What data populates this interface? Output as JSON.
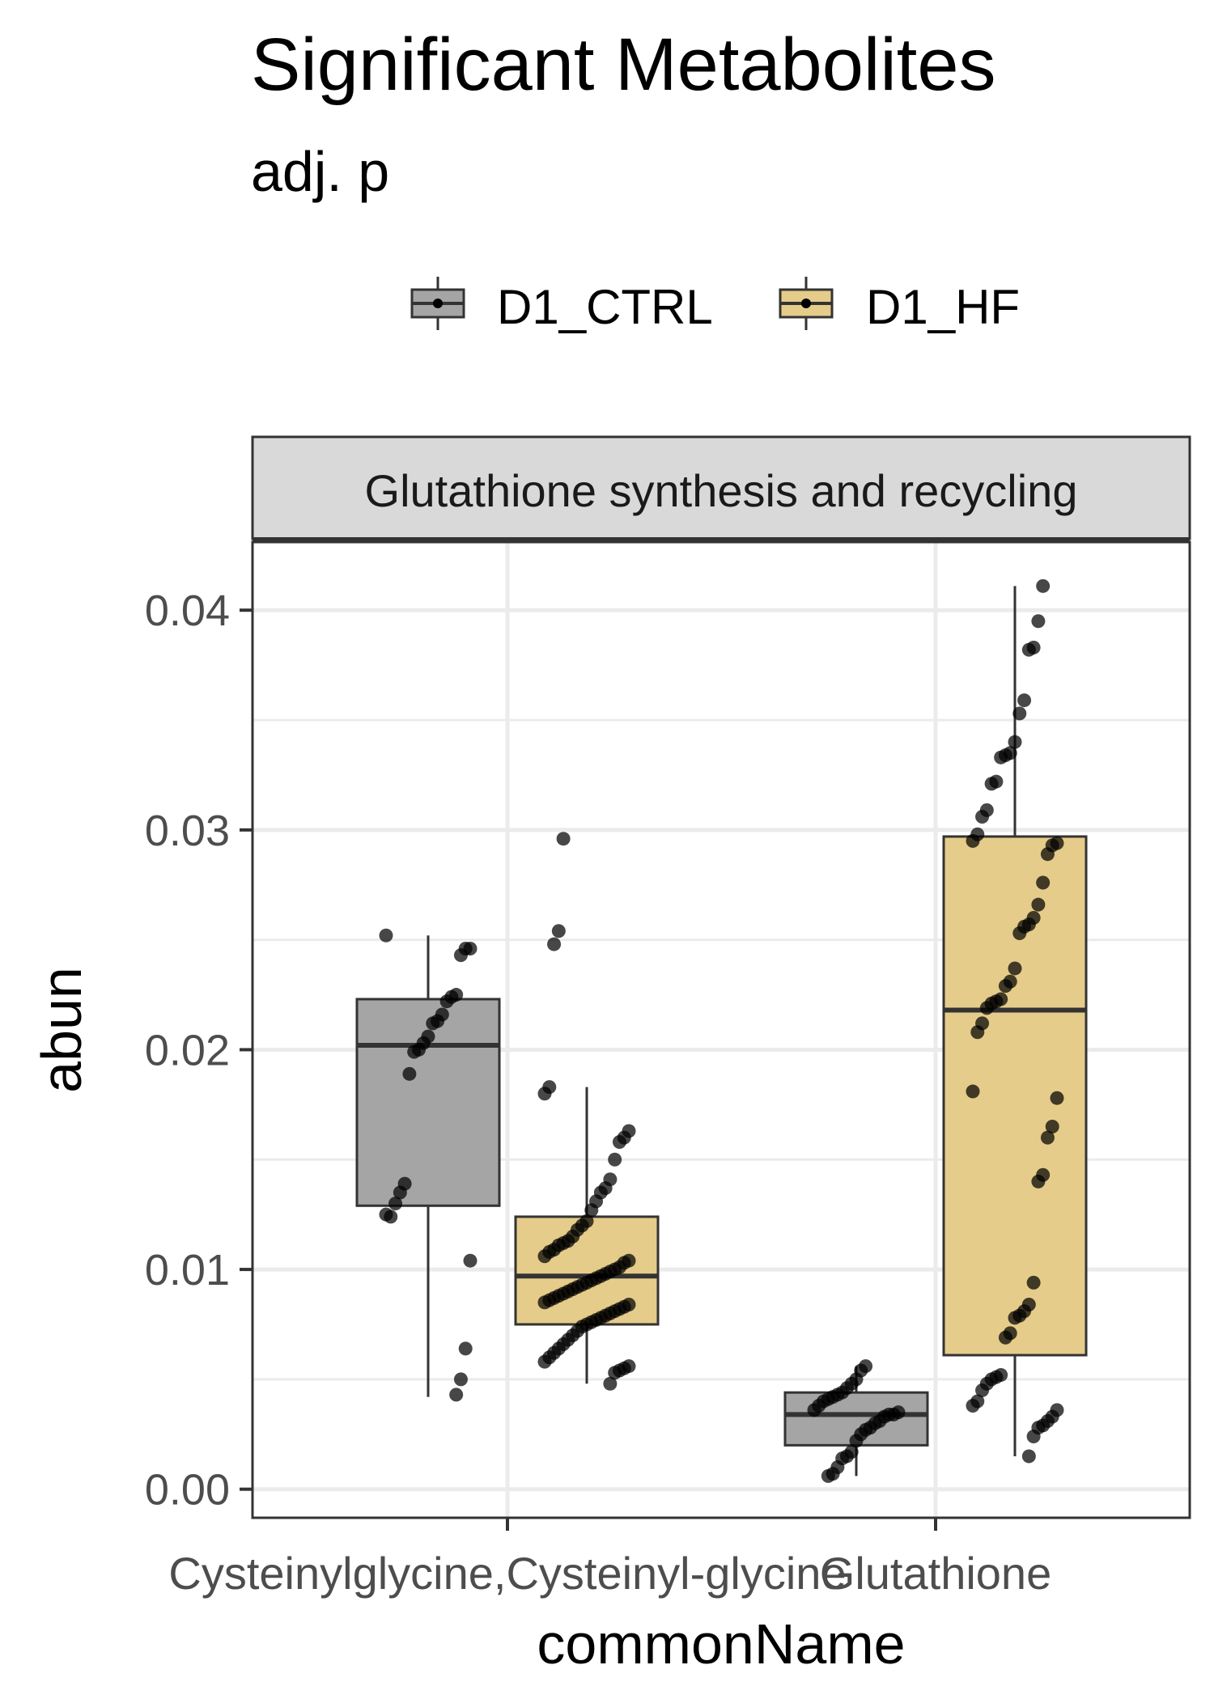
{
  "title": "Significant Metabolites",
  "subtitle": "adj. p",
  "colors": {
    "D1_CTRL": "#a5a5a5",
    "D1_HF": "#e6cc8a",
    "strip_bg": "#d9d9d9",
    "grid": "#ebebeb",
    "point": "#000000"
  },
  "chart_data": {
    "type": "box",
    "title": "Significant Metabolites",
    "subtitle": "adj. p",
    "facet": "Glutathione synthesis and recycling",
    "xlabel": "commonName",
    "ylabel": "abun",
    "categories": [
      "Cysteinylglycine,Cysteinyl-glycine",
      "Glutathione"
    ],
    "ylim": [
      -0.0013,
      0.0431
    ],
    "yticks": [
      0.0,
      0.01,
      0.02,
      0.03,
      0.04
    ],
    "ytick_labels": [
      "0.00",
      "0.01",
      "0.02",
      "0.03",
      "0.04"
    ],
    "legend": {
      "position": "top",
      "entries": [
        "D1_CTRL",
        "D1_HF"
      ]
    },
    "grid": true,
    "series": [
      {
        "name": "D1_CTRL",
        "boxes": [
          {
            "category": "Cysteinylglycine,Cysteinyl-glycine",
            "min": 0.0042,
            "q1": 0.0129,
            "median": 0.0202,
            "q3": 0.0223,
            "max": 0.0252
          },
          {
            "category": "Glutathione",
            "min": 0.0006,
            "q1": 0.002,
            "median": 0.0034,
            "q3": 0.0044,
            "max": 0.0056
          }
        ],
        "points": [
          {
            "category": "Cysteinylglycine,Cysteinyl-glycine",
            "values": [
              0.0252,
              0.0246,
              0.0246,
              0.0243,
              0.0225,
              0.0224,
              0.0222,
              0.0216,
              0.0213,
              0.0212,
              0.0206,
              0.0203,
              0.02,
              0.0199,
              0.0189,
              0.0139,
              0.0135,
              0.013,
              0.0124,
              0.0125,
              0.0104,
              0.0064,
              0.005,
              0.0043
            ]
          },
          {
            "category": "Glutathione",
            "values": [
              0.0056,
              0.0054,
              0.005,
              0.0048,
              0.0046,
              0.0044,
              0.0043,
              0.0042,
              0.0041,
              0.004,
              0.0038,
              0.0036,
              0.0035,
              0.0034,
              0.0034,
              0.0033,
              0.0031,
              0.003,
              0.0028,
              0.0027,
              0.0025,
              0.0022,
              0.0017,
              0.0015,
              0.0014,
              0.001,
              0.0007,
              0.0006
            ]
          }
        ]
      },
      {
        "name": "D1_HF",
        "boxes": [
          {
            "category": "Cysteinylglycine,Cysteinyl-glycine",
            "min": 0.0048,
            "q1": 0.0075,
            "median": 0.0097,
            "q3": 0.0124,
            "max": 0.0183
          },
          {
            "category": "Glutathione",
            "min": 0.0015,
            "q1": 0.0061,
            "median": 0.0218,
            "q3": 0.0297,
            "max": 0.0411
          }
        ],
        "points": [
          {
            "category": "Cysteinylglycine,Cysteinyl-glycine",
            "values": [
              0.0296,
              0.0254,
              0.0248,
              0.0183,
              0.018,
              0.0163,
              0.016,
              0.0158,
              0.015,
              0.0141,
              0.0137,
              0.0135,
              0.0131,
              0.0127,
              0.0122,
              0.012,
              0.0118,
              0.0115,
              0.0113,
              0.0112,
              0.0111,
              0.0109,
              0.0108,
              0.0106,
              0.0104,
              0.0103,
              0.0101,
              0.01,
              0.0099,
              0.0098,
              0.0097,
              0.0096,
              0.0095,
              0.0094,
              0.0093,
              0.0092,
              0.0091,
              0.009,
              0.0089,
              0.0088,
              0.0087,
              0.0086,
              0.0085,
              0.0084,
              0.0083,
              0.0082,
              0.0081,
              0.008,
              0.0079,
              0.0078,
              0.0077,
              0.0076,
              0.0075,
              0.0074,
              0.0072,
              0.007,
              0.0068,
              0.0066,
              0.0064,
              0.0062,
              0.006,
              0.0058,
              0.0056,
              0.0055,
              0.0054,
              0.0053,
              0.0048
            ]
          },
          {
            "category": "Glutathione",
            "values": [
              0.0411,
              0.0395,
              0.0383,
              0.0382,
              0.0359,
              0.0353,
              0.034,
              0.0335,
              0.0334,
              0.0333,
              0.0322,
              0.0321,
              0.0309,
              0.0306,
              0.0298,
              0.0295,
              0.0294,
              0.0293,
              0.0289,
              0.0276,
              0.0266,
              0.026,
              0.0257,
              0.0256,
              0.0253,
              0.0237,
              0.0231,
              0.0229,
              0.0223,
              0.0222,
              0.0221,
              0.0219,
              0.0212,
              0.0208,
              0.0181,
              0.0178,
              0.0165,
              0.016,
              0.0143,
              0.014,
              0.0094,
              0.0084,
              0.0081,
              0.0079,
              0.0078,
              0.0071,
              0.0069,
              0.0052,
              0.0051,
              0.005,
              0.0048,
              0.0045,
              0.004,
              0.0038,
              0.0036,
              0.0033,
              0.0031,
              0.0029,
              0.0028,
              0.0024,
              0.0015
            ]
          }
        ]
      }
    ]
  }
}
